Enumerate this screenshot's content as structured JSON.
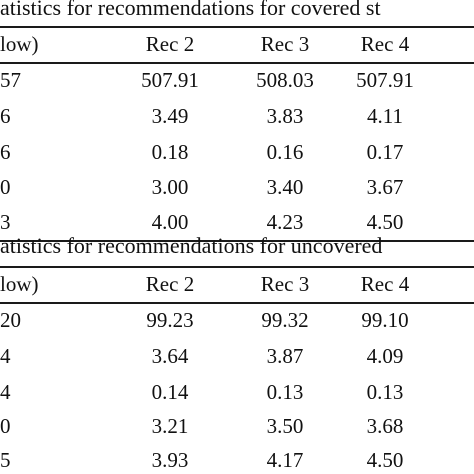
{
  "sections": [
    {
      "title": "atistics for recommendations for covered st",
      "header": [
        "low)",
        "Rec 2",
        "Rec 3",
        "Rec 4"
      ],
      "rows": [
        [
          "57",
          "507.91",
          "508.03",
          "507.91"
        ],
        [
          "6",
          "3.49",
          "3.83",
          "4.11"
        ],
        [
          "6",
          "0.18",
          "0.16",
          "0.17"
        ],
        [
          "0",
          "3.00",
          "3.40",
          "3.67"
        ],
        [
          "3",
          "4.00",
          "4.23",
          "4.50"
        ]
      ]
    },
    {
      "title": "atistics for recommendations for uncovered",
      "header": [
        "low)",
        "Rec 2",
        "Rec 3",
        "Rec 4"
      ],
      "rows": [
        [
          "20",
          "99.23",
          "99.32",
          "99.10"
        ],
        [
          "4",
          "3.64",
          "3.87",
          "4.09"
        ],
        [
          "4",
          "0.14",
          "0.13",
          "0.13"
        ],
        [
          "0",
          "3.21",
          "3.50",
          "3.68"
        ],
        [
          "5",
          "3.93",
          "4.17",
          "4.50"
        ]
      ]
    }
  ]
}
